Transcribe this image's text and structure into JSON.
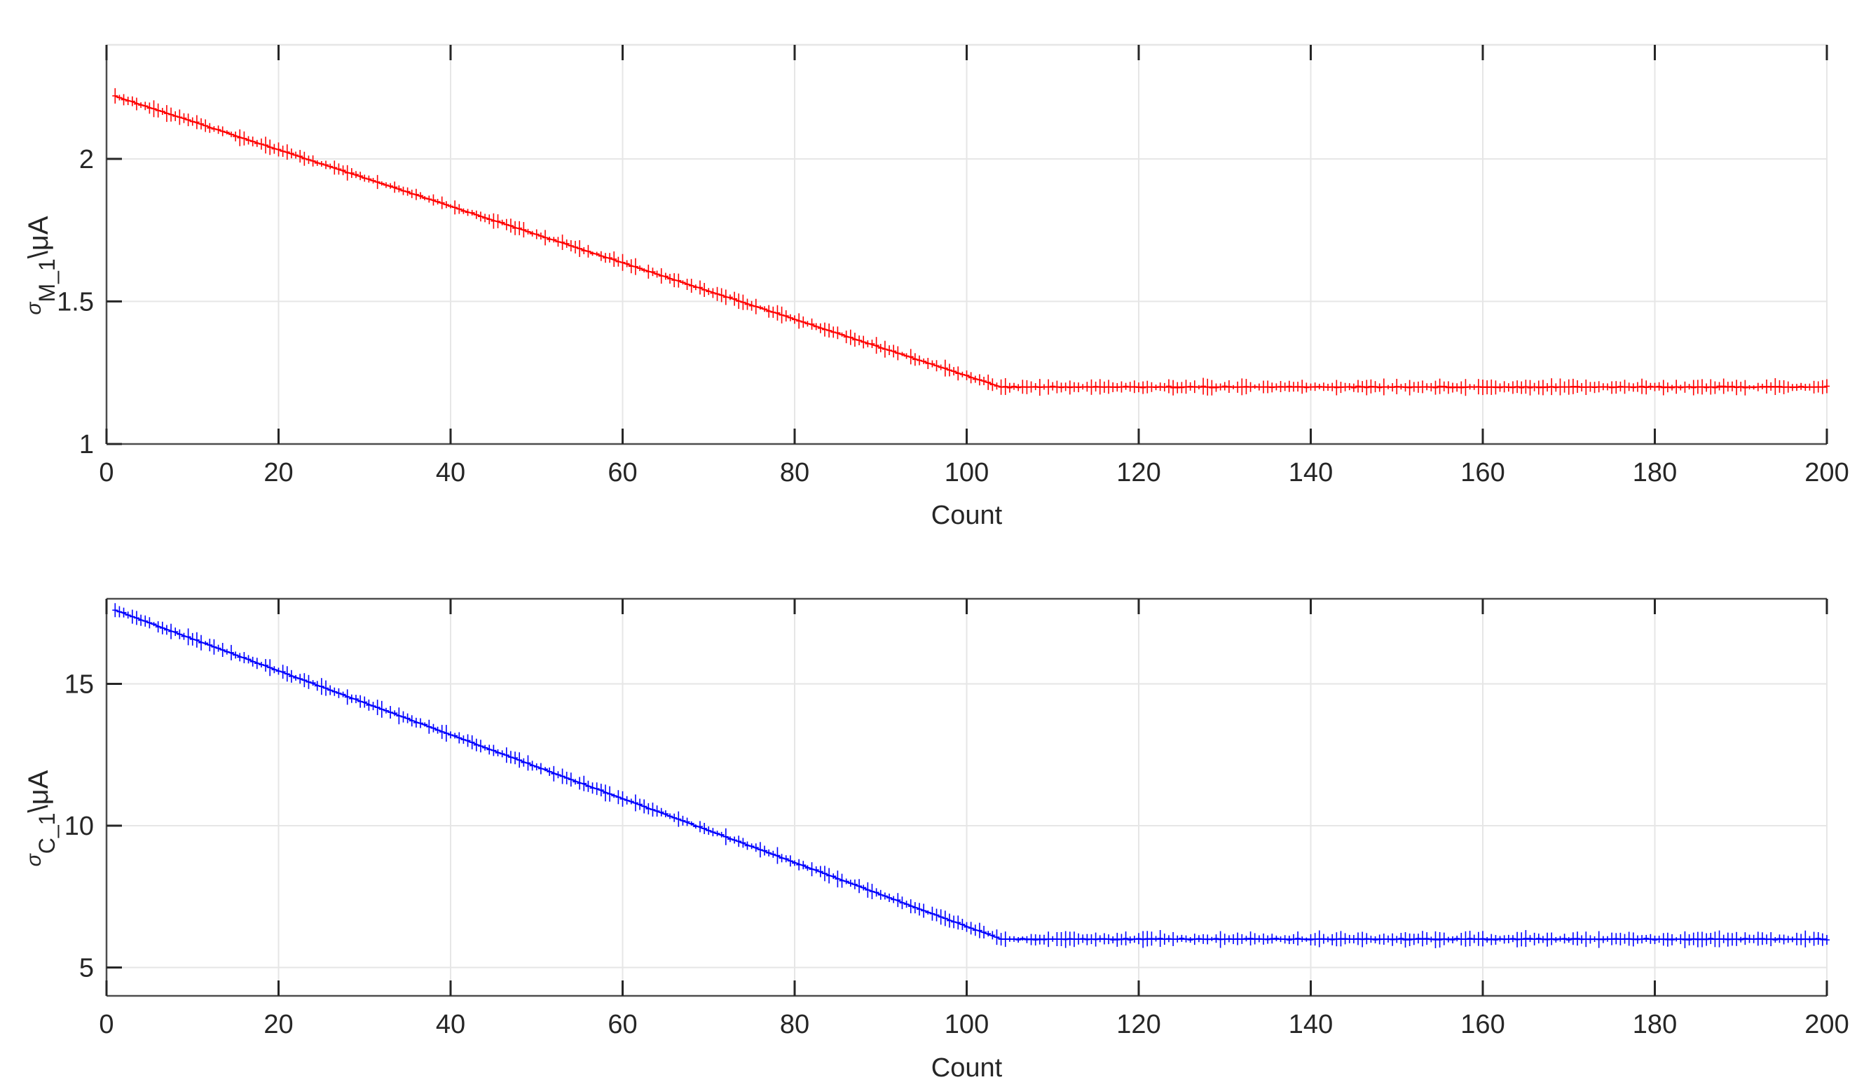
{
  "chart_data": [
    {
      "type": "line",
      "title": "",
      "xlabel": "Count",
      "ylabel": {
        "symbol": "σ",
        "subscript": "M_1",
        "unit": "\\μA"
      },
      "xlim": [
        0,
        200
      ],
      "ylim": [
        1,
        2.4
      ],
      "xticks": [
        0,
        20,
        40,
        60,
        80,
        100,
        120,
        140,
        160,
        180,
        200
      ],
      "yticks": [
        1,
        1.5,
        2
      ],
      "grid": true,
      "marker": "+",
      "series": [
        {
          "color": "#ff0000",
          "x": [
            1,
            104,
            200
          ],
          "y": [
            2.22,
            1.2,
            1.2
          ]
        }
      ]
    },
    {
      "type": "line",
      "title": "",
      "xlabel": "Count",
      "ylabel": {
        "symbol": "σ",
        "subscript": "C_1",
        "unit": "\\μA"
      },
      "xlim": [
        0,
        200
      ],
      "ylim": [
        4,
        18
      ],
      "xticks": [
        0,
        20,
        40,
        60,
        80,
        100,
        120,
        140,
        160,
        180,
        200
      ],
      "yticks": [
        5,
        10,
        15
      ],
      "grid": true,
      "marker": "+",
      "series": [
        {
          "color": "#0000ff",
          "x": [
            1,
            104,
            200
          ],
          "y": [
            17.6,
            6.0,
            6.0
          ]
        }
      ]
    }
  ]
}
